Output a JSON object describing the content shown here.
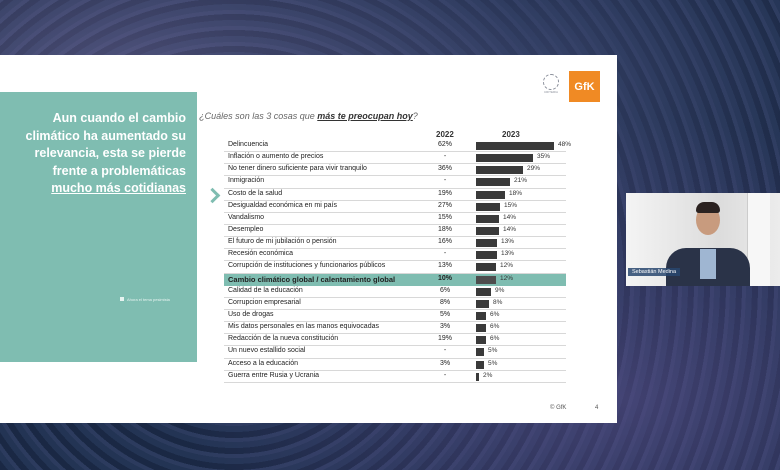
{
  "slide": {
    "heading_main": "Aun cuando el cambio climático ha aumentado su relevancia, esta se pierde frente a problemáticas",
    "heading_emph": "mucho más cotidianas",
    "source_note": "Ahora el tema pesimista",
    "question_pre": "¿Cuáles son las 3 cosas que",
    "question_emph": "más te preocupan hoy",
    "question_post": "?",
    "col_2022": "2022",
    "col_2023": "2023",
    "logo_left_text": "CRITERIA",
    "logo_right_text": "GfK",
    "footer": "© GfK",
    "page_number": "4",
    "rows": [
      {
        "label": "Delincuencia",
        "v2022": "62%",
        "v2023": "48%",
        "p": 48
      },
      {
        "label": "Inflación o aumento de precios",
        "v2022": "-",
        "v2023": "35%",
        "p": 35
      },
      {
        "label": "No tener dinero suficiente para vivir tranquilo",
        "v2022": "36%",
        "v2023": "29%",
        "p": 29
      },
      {
        "label": "Inmigración",
        "v2022": "-",
        "v2023": "21%",
        "p": 21
      },
      {
        "label": "Costo de la salud",
        "v2022": "19%",
        "v2023": "18%",
        "p": 18
      },
      {
        "label": "Desigualdad económica en mi país",
        "v2022": "27%",
        "v2023": "15%",
        "p": 15
      },
      {
        "label": "Vandalismo",
        "v2022": "15%",
        "v2023": "14%",
        "p": 14
      },
      {
        "label": "Desempleo",
        "v2022": "18%",
        "v2023": "14%",
        "p": 14
      },
      {
        "label": "El futuro de mi jubilación o pensión",
        "v2022": "16%",
        "v2023": "13%",
        "p": 13
      },
      {
        "label": "Recesión económica",
        "v2022": "-",
        "v2023": "13%",
        "p": 13
      },
      {
        "label": "Corrupción de instituciones y funcionarios públicos",
        "v2022": "13%",
        "v2023": "12%",
        "p": 12
      },
      {
        "label": "Cambio climático global / calentamiento global",
        "v2022": "10%",
        "v2023": "12%",
        "p": 12,
        "highlight": true
      },
      {
        "label": "Calidad de la educación",
        "v2022": "6%",
        "v2023": "9%",
        "p": 9
      },
      {
        "label": "Corrupcion empresarial",
        "v2022": "8%",
        "v2023": "8%",
        "p": 8
      },
      {
        "label": "Uso de drogas",
        "v2022": "5%",
        "v2023": "6%",
        "p": 6
      },
      {
        "label": "Mis datos personales en las manos equivocadas",
        "v2022": "3%",
        "v2023": "6%",
        "p": 6
      },
      {
        "label": "Redacción de la nueva constitución",
        "v2022": "19%",
        "v2023": "6%",
        "p": 6
      },
      {
        "label": "Un nuevo estallido social",
        "v2022": "-",
        "v2023": "5%",
        "p": 5
      },
      {
        "label": "Acceso a la educación",
        "v2022": "3%",
        "v2023": "5%",
        "p": 5
      },
      {
        "label": "Guerra entre Rusia y Ucrania",
        "v2022": "-",
        "v2023": "2%",
        "p": 2
      }
    ]
  },
  "video": {
    "participant_name": "Sebastián Medina"
  },
  "colors": {
    "accent_teal": "#7fbdb1",
    "bar": "#3a3a3a",
    "gfk_orange": "#f08a24"
  }
}
